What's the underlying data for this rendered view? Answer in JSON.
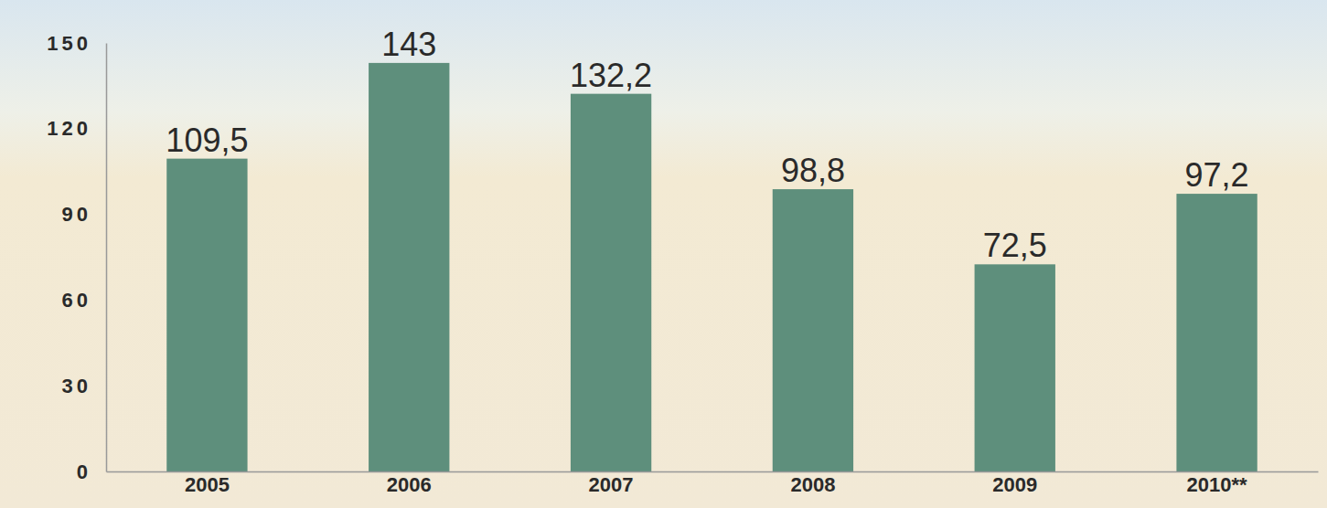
{
  "chart_data": {
    "type": "bar",
    "categories": [
      "2005",
      "2006",
      "2007",
      "2008",
      "2009",
      "2010**"
    ],
    "values": [
      109.5,
      143,
      132.2,
      98.8,
      72.5,
      97.2
    ],
    "value_labels": [
      "109,5",
      "143",
      "132,2",
      "98,8",
      "72,5",
      "97,2"
    ],
    "color": "#5e8f7c",
    "ylim": [
      0,
      150
    ],
    "yticks": [
      0,
      30,
      60,
      90,
      120,
      150
    ],
    "grid": false,
    "data_labels": true
  }
}
